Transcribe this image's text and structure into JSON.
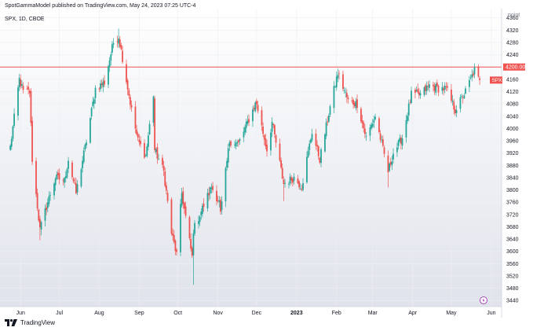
{
  "header": {
    "published_line": "SpotGammaModel published on TradingView.com, May 24, 2023 07:25 UTC-4"
  },
  "footer": {
    "brand": "TradingView",
    "logo_icon": "tradingview-logo-icon"
  },
  "chart_data": {
    "type": "candlestick",
    "symbol_label": "SPX, 1D, CBOE",
    "axis_unit_label": "point",
    "last_price_tag": "SPX",
    "reference_line": {
      "value": 4200,
      "label": "4200.00",
      "color": "#f05350"
    },
    "colors": {
      "up": "#26a69a",
      "down": "#ef5350",
      "grid": "#eceef2",
      "bg_top": "#ffffff",
      "bg_bottom": "#e0e3eb"
    },
    "ylim": [
      3420,
      4390
    ],
    "y_ticks": [
      3440,
      3480,
      3520,
      3560,
      3600,
      3640,
      3680,
      3720,
      3760,
      3800,
      3840,
      3880,
      3920,
      3960,
      4000,
      4040,
      4080,
      4120,
      4160,
      4240,
      4280,
      4320,
      4360
    ],
    "x_labels": [
      "Jun",
      "Jul",
      "Aug",
      "Sep",
      "Oct",
      "Nov",
      "Dec",
      "2023",
      "Feb",
      "Mar",
      "Apr",
      "May",
      "Jun"
    ],
    "x_label_bold": "2023",
    "anchors": [
      [
        "2022-05-24",
        3940
      ],
      [
        "2022-05-31",
        4160
      ],
      [
        "2022-06-03",
        4120
      ],
      [
        "2022-06-08",
        4120
      ],
      [
        "2022-06-10",
        3900
      ],
      [
        "2022-06-16",
        3670
      ],
      [
        "2022-06-22",
        3760
      ],
      [
        "2022-06-28",
        3840
      ],
      [
        "2022-07-05",
        3830
      ],
      [
        "2022-07-08",
        3900
      ],
      [
        "2022-07-14",
        3790
      ],
      [
        "2022-07-22",
        3960
      ],
      [
        "2022-07-29",
        4130
      ],
      [
        "2022-08-05",
        4150
      ],
      [
        "2022-08-12",
        4280
      ],
      [
        "2022-08-16",
        4300
      ],
      [
        "2022-08-19",
        4230
      ],
      [
        "2022-08-26",
        4060
      ],
      [
        "2022-08-31",
        3960
      ],
      [
        "2022-09-06",
        3910
      ],
      [
        "2022-09-12",
        4110
      ],
      [
        "2022-09-13",
        3930
      ],
      [
        "2022-09-20",
        3860
      ],
      [
        "2022-09-26",
        3660
      ],
      [
        "2022-09-30",
        3590
      ],
      [
        "2022-10-04",
        3790
      ],
      [
        "2022-10-12",
        3580
      ],
      [
        "2022-10-13",
        3670
      ],
      [
        "2022-10-21",
        3750
      ],
      [
        "2022-10-27",
        3810
      ],
      [
        "2022-11-02",
        3760
      ],
      [
        "2022-11-03",
        3720
      ],
      [
        "2022-11-10",
        3960
      ],
      [
        "2022-11-17",
        3950
      ],
      [
        "2022-11-30",
        4080
      ],
      [
        "2022-12-01",
        4080
      ],
      [
        "2022-12-09",
        3930
      ],
      [
        "2022-12-13",
        4020
      ],
      [
        "2022-12-22",
        3820
      ],
      [
        "2022-12-30",
        3840
      ],
      [
        "2023-01-05",
        3810
      ],
      [
        "2023-01-13",
        3990
      ],
      [
        "2023-01-19",
        3900
      ],
      [
        "2023-01-27",
        4070
      ],
      [
        "2023-02-02",
        4180
      ],
      [
        "2023-02-10",
        4090
      ],
      [
        "2023-02-17",
        4080
      ],
      [
        "2023-02-24",
        3970
      ],
      [
        "2023-03-03",
        4040
      ],
      [
        "2023-03-13",
        3860
      ],
      [
        "2023-03-17",
        3920
      ],
      [
        "2023-03-24",
        3970
      ],
      [
        "2023-03-31",
        4110
      ],
      [
        "2023-04-07",
        4110
      ],
      [
        "2023-04-14",
        4140
      ],
      [
        "2023-04-21",
        4130
      ],
      [
        "2023-04-27",
        4130
      ],
      [
        "2023-05-04",
        4060
      ],
      [
        "2023-05-12",
        4120
      ],
      [
        "2023-05-19",
        4190
      ],
      [
        "2023-05-23",
        4150
      ]
    ],
    "low_extremes": [
      [
        "2022-06-16",
        3636
      ],
      [
        "2022-10-13",
        3491
      ],
      [
        "2022-12-22",
        3764
      ],
      [
        "2023-03-13",
        3808
      ]
    ],
    "high_extremes": [
      [
        "2022-08-16",
        4325
      ],
      [
        "2023-02-02",
        4195
      ],
      [
        "2023-05-19",
        4212
      ]
    ]
  }
}
